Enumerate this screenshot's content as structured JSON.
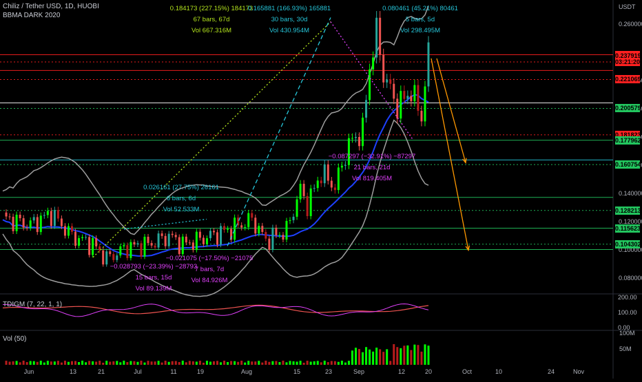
{
  "header": {
    "symbol": "Chiliz / Tether USD, 1D, HUOBI",
    "indicator": "BBMA DARK 2020",
    "currency": "USDT"
  },
  "panes": {
    "tdigm": "TDIGM (7, 22, 1, 1)",
    "volume": "Vol (50)",
    "tdigm_ticks": [
      "200.00",
      "100.00",
      "0.00"
    ],
    "volume_ticks": [
      "100M",
      "50M"
    ]
  },
  "colors": {
    "bull": "#26a69a",
    "bull_bright": "#00ff00",
    "bear": "#ef5350",
    "bear_dark": "#b71c1c",
    "bb": "#9e9e9e",
    "ma_blue": "#1e40ff",
    "level_green": "#22c55e",
    "level_red": "#ff2020",
    "magenta": "#e040fb",
    "cyan": "#26c6da",
    "orange": "#ff9800",
    "yellow_green": "#b5e61d"
  },
  "chart_data": {
    "type": "candlestick",
    "x_axis": [
      "Jun",
      "13",
      "21",
      "Jul",
      "11",
      "19",
      "Aug",
      "15",
      "23",
      "Sep",
      "12",
      "20",
      "Oct",
      "10",
      "24",
      "Nov"
    ],
    "y_axis": [
      "0.260000",
      "0.220000",
      "0.200000",
      "0.180000",
      "0.160000",
      "0.140000",
      "0.120000",
      "0.100000",
      "0.080000"
    ],
    "ylim": [
      0.07,
      0.275
    ],
    "price_tags": [
      {
        "value": 0.238633,
        "label": "0.238633",
        "color": "#ff2020",
        "text": "#000"
      },
      {
        "value": 0.237919,
        "label": "0.237919",
        "color": "#ff2020",
        "text": "#000"
      },
      {
        "value": 0.2335,
        "label": "03:21:20",
        "color": "#ff2020",
        "text": "#000"
      },
      {
        "value": 0.221069,
        "label": "0.221069",
        "color": "#ff2020",
        "text": "#000"
      },
      {
        "value": 0.200579,
        "label": "0.200579",
        "color": "#22c55e",
        "text": "#000"
      },
      {
        "value": 0.181823,
        "label": "0.181823",
        "color": "#ff2020",
        "text": "#000"
      },
      {
        "value": 0.177962,
        "label": "0.177962",
        "color": "#22c55e",
        "text": "#000"
      },
      {
        "value": 0.160754,
        "label": "0.160754",
        "color": "#22c55e",
        "text": "#000"
      },
      {
        "value": 0.128213,
        "label": "0.128213",
        "color": "#22c55e",
        "text": "#000"
      },
      {
        "value": 0.115623,
        "label": "0.115623",
        "color": "#22c55e",
        "text": "#000"
      },
      {
        "value": 0.104302,
        "label": "0.104302",
        "color": "#22c55e",
        "text": "#000"
      }
    ],
    "levels": [
      {
        "value": 0.238633,
        "color": "#ff2020",
        "style": "solid"
      },
      {
        "value": 0.2335,
        "color": "#ff2020",
        "style": "dotted"
      },
      {
        "value": 0.2275,
        "color": "#ff2020",
        "style": "solid"
      },
      {
        "value": 0.221069,
        "color": "#ff2020",
        "style": "dotted"
      },
      {
        "value": 0.2045,
        "color": "#ffffff",
        "style": "solid"
      },
      {
        "value": 0.200579,
        "color": "#22c55e",
        "style": "dotted"
      },
      {
        "value": 0.181823,
        "color": "#ff2020",
        "style": "dotted"
      },
      {
        "value": 0.177962,
        "color": "#22c55e",
        "style": "solid"
      },
      {
        "value": 0.164,
        "color": "#26c6da",
        "style": "solid"
      },
      {
        "value": 0.160754,
        "color": "#22c55e",
        "style": "dotted"
      },
      {
        "value": 0.1375,
        "color": "#22c55e",
        "style": "solid"
      },
      {
        "value": 0.128213,
        "color": "#22c55e",
        "style": "dotted"
      },
      {
        "value": 0.115623,
        "color": "#22c55e",
        "style": "solid"
      },
      {
        "value": 0.104302,
        "color": "#22c55e",
        "style": "dotted"
      },
      {
        "value": 0.1005,
        "color": "#22c55e",
        "style": "solid"
      }
    ],
    "annotations": [
      {
        "color": "#b5e61d",
        "lines": [
          "0.184173 (227.15%) 184173",
          "67 bars, 67d",
          "Vol 667.316M"
        ]
      },
      {
        "color": "#26c6da",
        "lines": [
          "0.165881 (166.93%) 165881",
          "30 bars, 30d",
          "Vol 430.954M"
        ]
      },
      {
        "color": "#26c6da",
        "lines": [
          "0.080461 (45.21%) 80461",
          "5 bars, 5d",
          "Vol 298.495M"
        ]
      },
      {
        "color": "#26c6da",
        "lines": [
          "0.026161 (27.75%) 26161",
          "6 bars, 6d",
          "Vol 52.533M"
        ]
      },
      {
        "color": "#e040fb",
        "lines": [
          "−0.028793 (−23.39%) −28793",
          "15 bars, 15d",
          "Vol 89.139M"
        ]
      },
      {
        "color": "#e040fb",
        "lines": [
          "−0.021075 (−17.50%) −21075",
          "7 bars, 7d",
          "Vol 84.926M"
        ]
      },
      {
        "color": "#e040fb",
        "lines": [
          "−0.087297 (−32.91%) −87297",
          "21 bars, 21d",
          "Vol 819.405M"
        ]
      }
    ]
  }
}
